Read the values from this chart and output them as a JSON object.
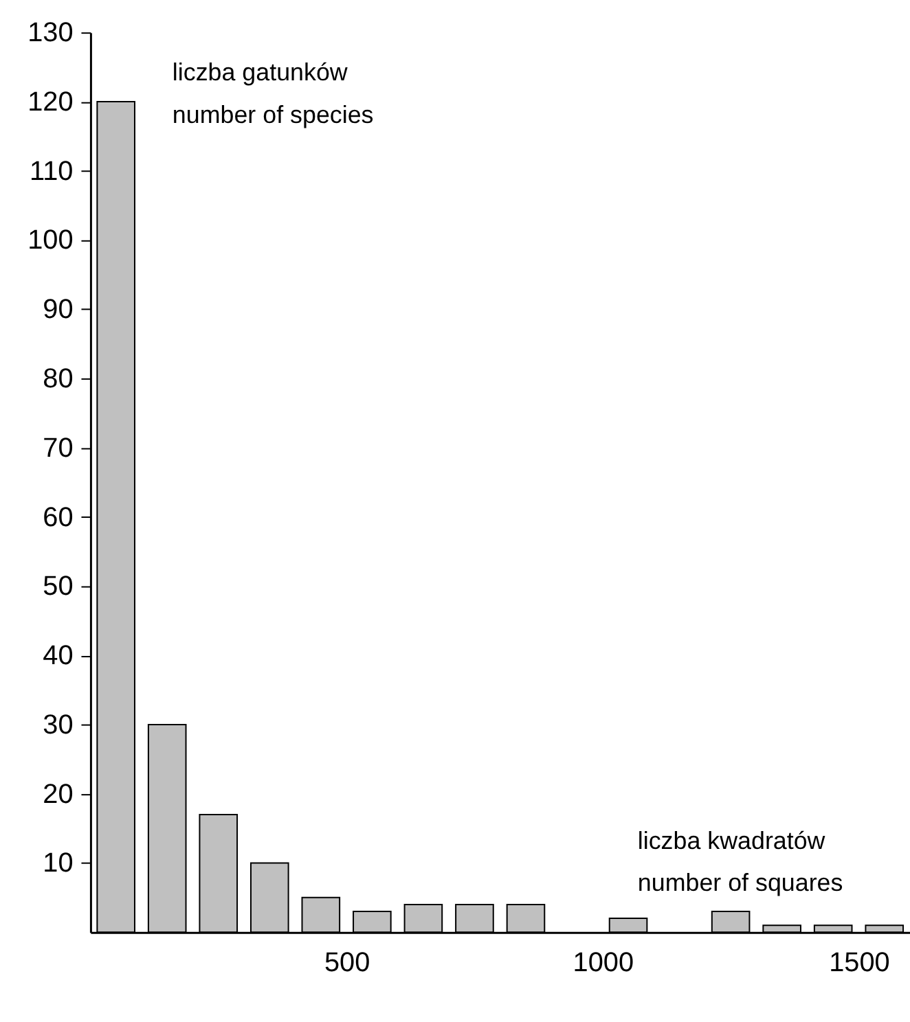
{
  "chart_data": {
    "type": "histogram",
    "bins": [
      0,
      100,
      200,
      300,
      400,
      500,
      600,
      700,
      800,
      900,
      1000,
      1100,
      1200,
      1300,
      1400,
      1500,
      1600
    ],
    "values": [
      120,
      30,
      17,
      10,
      5,
      3,
      4,
      4,
      4,
      0,
      2,
      0,
      3,
      1,
      1,
      1
    ],
    "color": "#c0c0c0",
    "xlim": [
      0,
      1600
    ],
    "xticks": [
      500,
      1000,
      1500
    ],
    "ylim": [
      0,
      130
    ],
    "yticks": [
      10,
      20,
      30,
      40,
      50,
      60,
      70,
      80,
      90,
      100,
      110,
      120,
      130
    ],
    "ylabel": "liczba gatunków\nnumber of species",
    "xlabel": "liczba kwadratów\nnumber of squares",
    "grid": false
  }
}
